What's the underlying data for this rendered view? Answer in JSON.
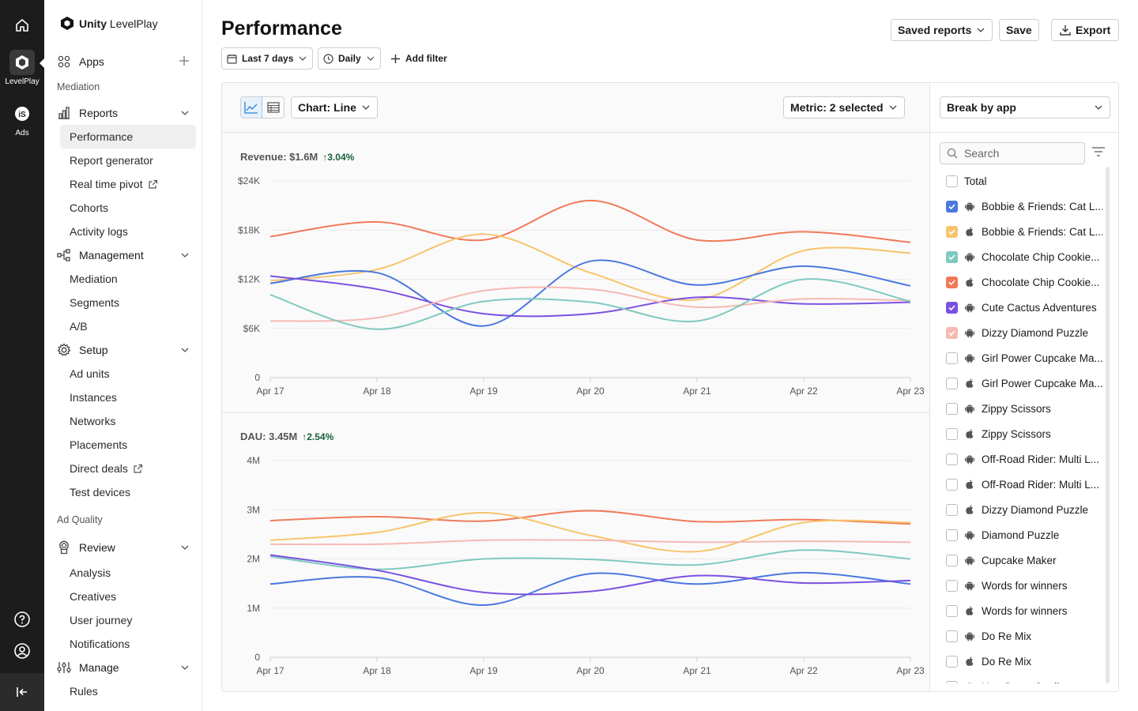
{
  "rail": {
    "levelplay_label": "LevelPlay",
    "ads_label": "Ads"
  },
  "sidebar": {
    "brand_bold": "Unity",
    "brand_rest": "LevelPlay",
    "apps_label": "Apps",
    "section_mediation": "Mediation",
    "reports": {
      "label": "Reports",
      "items": [
        "Performance",
        "Report generator",
        "Real time pivot",
        "Cohorts",
        "Activity logs"
      ]
    },
    "management": {
      "label": "Management",
      "items": [
        "Mediation",
        "Segments",
        "A/B"
      ]
    },
    "setup": {
      "label": "Setup",
      "items": [
        "Ad units",
        "Instances",
        "Networks",
        "Placements",
        "Direct deals",
        "Test devices"
      ]
    },
    "section_ad_quality": "Ad Quality",
    "review": {
      "label": "Review",
      "items": [
        "Analysis",
        "Creatives",
        "User journey",
        "Notifications"
      ]
    },
    "manage": {
      "label": "Manage",
      "items": [
        "Rules"
      ]
    }
  },
  "header": {
    "title": "Performance",
    "saved_reports": "Saved reports",
    "save": "Save",
    "export": "Export",
    "date_range": "Last 7 days",
    "granularity": "Daily",
    "add_filter": "Add filter"
  },
  "toolbar": {
    "chart_type": "Chart: Line",
    "metric": "Metric: 2 selected",
    "break_by": "Break by app",
    "search_placeholder": "Search"
  },
  "colors": {
    "blue": "#4a78e0",
    "yellow": "#f7c46c",
    "teal": "#7fc9c0",
    "orange": "#f07a5a",
    "purple": "#7a52e0",
    "pink": "#f6b9b3"
  },
  "chart_data": [
    {
      "type": "line",
      "title": "Revenue: $1.6M",
      "change": "3.04%",
      "categories": [
        "Apr 17",
        "Apr 18",
        "Apr 19",
        "Apr 20",
        "Apr 21",
        "Apr 22",
        "Apr 23"
      ],
      "y_ticks": [
        "0",
        "$6K",
        "$12K",
        "$18K",
        "$24K"
      ],
      "ylim": [
        0,
        24000
      ],
      "series": [
        {
          "color": "#f07a5a",
          "values": [
            17200,
            19000,
            16800,
            21600,
            16800,
            17800,
            16500
          ]
        },
        {
          "color": "#f7c46c",
          "values": [
            11800,
            13200,
            17500,
            12800,
            9500,
            15500,
            15200
          ]
        },
        {
          "color": "#4a78e0",
          "values": [
            11500,
            12800,
            6300,
            14200,
            11300,
            13600,
            11200
          ]
        },
        {
          "color": "#7a52e0",
          "values": [
            12400,
            10800,
            7800,
            7800,
            9800,
            9000,
            9200
          ]
        },
        {
          "color": "#f6b9b3",
          "values": [
            6900,
            7300,
            10600,
            10800,
            8600,
            9600,
            9400
          ]
        },
        {
          "color": "#7fc9c0",
          "values": [
            10100,
            5900,
            9300,
            9200,
            6900,
            12000,
            9300
          ]
        }
      ]
    },
    {
      "type": "line",
      "title": "DAU: 3.45M",
      "change": "2.54%",
      "categories": [
        "Apr 17",
        "Apr 18",
        "Apr 19",
        "Apr 20",
        "Apr 21",
        "Apr 22",
        "Apr 23"
      ],
      "y_ticks": [
        "0",
        "1M",
        "2M",
        "3M",
        "4M"
      ],
      "ylim": [
        0,
        4000000
      ],
      "series": [
        {
          "color": "#f07a5a",
          "values": [
            2780000,
            2860000,
            2770000,
            2980000,
            2760000,
            2800000,
            2710000
          ]
        },
        {
          "color": "#f7c46c",
          "values": [
            2380000,
            2540000,
            2940000,
            2480000,
            2150000,
            2740000,
            2740000
          ]
        },
        {
          "color": "#f6b9b3",
          "values": [
            2300000,
            2300000,
            2380000,
            2380000,
            2340000,
            2360000,
            2340000
          ]
        },
        {
          "color": "#7fc9c0",
          "values": [
            2050000,
            1790000,
            2000000,
            1990000,
            1880000,
            2180000,
            2000000
          ]
        },
        {
          "color": "#4a78e0",
          "values": [
            1490000,
            1620000,
            1060000,
            1700000,
            1490000,
            1720000,
            1490000
          ]
        },
        {
          "color": "#7a52e0",
          "values": [
            2080000,
            1770000,
            1320000,
            1340000,
            1660000,
            1510000,
            1560000
          ]
        }
      ]
    }
  ],
  "apps": [
    {
      "name": "Total",
      "platform": "none",
      "checked": false,
      "color": ""
    },
    {
      "name": "Bobbie & Friends: Cat L...",
      "platform": "android",
      "checked": true,
      "color": "#4a78e0"
    },
    {
      "name": "Bobbie & Friends: Cat L...",
      "platform": "apple",
      "checked": true,
      "color": "#f7c46c"
    },
    {
      "name": "Chocolate Chip Cookie...",
      "platform": "android",
      "checked": true,
      "color": "#7fc9c0"
    },
    {
      "name": "Chocolate Chip Cookie...",
      "platform": "apple",
      "checked": true,
      "color": "#f07a5a"
    },
    {
      "name": "Cute Cactus Adventures",
      "platform": "android",
      "checked": true,
      "color": "#7a52e0"
    },
    {
      "name": "Dizzy Diamond Puzzle",
      "platform": "android",
      "checked": true,
      "color": "#f6b9b3"
    },
    {
      "name": "Girl Power Cupcake Ma...",
      "platform": "android",
      "checked": false,
      "color": ""
    },
    {
      "name": "Girl Power Cupcake Ma...",
      "platform": "apple",
      "checked": false,
      "color": ""
    },
    {
      "name": "Zippy Scissors",
      "platform": "android",
      "checked": false,
      "color": ""
    },
    {
      "name": "Zippy Scissors",
      "platform": "apple",
      "checked": false,
      "color": ""
    },
    {
      "name": "Off-Road Rider: Multi L...",
      "platform": "android",
      "checked": false,
      "color": ""
    },
    {
      "name": "Off-Road Rider: Multi L...",
      "platform": "apple",
      "checked": false,
      "color": ""
    },
    {
      "name": "Dizzy Diamond Puzzle",
      "platform": "apple",
      "checked": false,
      "color": ""
    },
    {
      "name": "Diamond Puzzle",
      "platform": "android",
      "checked": false,
      "color": ""
    },
    {
      "name": "Cupcake Maker",
      "platform": "android",
      "checked": false,
      "color": ""
    },
    {
      "name": "Words for winners",
      "platform": "android",
      "checked": false,
      "color": ""
    },
    {
      "name": "Words for winners",
      "platform": "apple",
      "checked": false,
      "color": ""
    },
    {
      "name": "Do Re Mix",
      "platform": "android",
      "checked": false,
      "color": ""
    },
    {
      "name": "Do Re Mix",
      "platform": "apple",
      "checked": false,
      "color": ""
    },
    {
      "name": "Hue Saver Studio",
      "platform": "android",
      "checked": false,
      "color": ""
    }
  ]
}
